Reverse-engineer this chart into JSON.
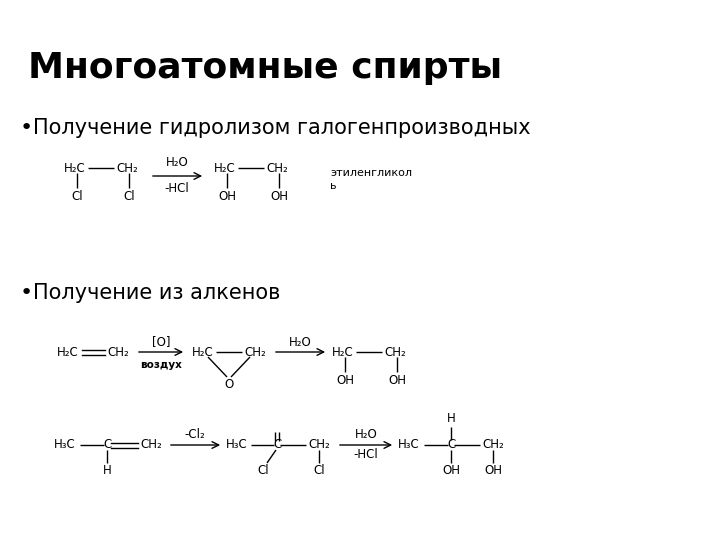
{
  "title": "Многоатомные спирты",
  "bullet1": "Получение гидролизом галогенпроизводных",
  "bullet2": "Получение из алкенов",
  "bg_color": "#ffffff",
  "text_color": "#000000",
  "title_fontsize": 26,
  "bullet_fontsize": 15,
  "chem_fontsize": 8.5,
  "fig_width": 7.2,
  "fig_height": 5.4
}
